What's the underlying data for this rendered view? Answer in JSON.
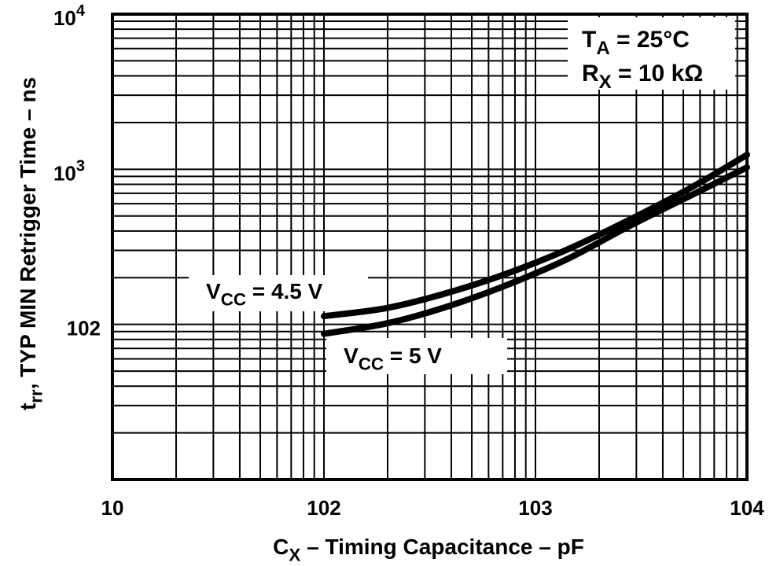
{
  "chart_data": {
    "type": "line",
    "title": "",
    "xlabel": {
      "main": "C",
      "sub": "X",
      "rest": " – Timing Capacitance – pF"
    },
    "ylabel": {
      "main": "t",
      "sub": "rr",
      "rest": ", TYP MIN Retrigger Time – ns"
    },
    "x_scale": "log",
    "y_scale": "log",
    "xlim": [
      10,
      10000
    ],
    "ylim": [
      10,
      10000
    ],
    "grid": true,
    "x_ticks": [
      {
        "value": 10,
        "label": "10",
        "sup": ""
      },
      {
        "value": 100,
        "label": "102",
        "sup": ""
      },
      {
        "value": 1000,
        "label": "103",
        "sup": ""
      },
      {
        "value": 10000,
        "label": "104",
        "sup": ""
      }
    ],
    "y_ticks": [
      {
        "value": 10000,
        "label": "10",
        "sup": "4"
      },
      {
        "value": 1000,
        "label": "10",
        "sup": "3"
      },
      {
        "value": 100,
        "label": "102",
        "sup": ""
      }
    ],
    "annotations": [
      {
        "main": "T",
        "sub": "A",
        "rest": " = 25°C"
      },
      {
        "main": "R",
        "sub": "X",
        "rest": " = 10 kΩ"
      }
    ],
    "series": [
      {
        "name": {
          "main": "V",
          "sub": "CC",
          "rest": " = 4.5 V"
        },
        "x": [
          100,
          195,
          355,
          700,
          1400,
          2770,
          5500,
          10000
        ],
        "y": [
          113,
          127,
          155,
          208,
          302,
          471,
          768,
          1240
        ]
      },
      {
        "name": {
          "main": "V",
          "sub": "CC",
          "rest": " = 5 V"
        },
        "x": [
          100,
          195,
          355,
          700,
          1400,
          2770,
          5500,
          10000
        ],
        "y": [
          87,
          101,
          126,
          175,
          262,
          429,
          684,
          1028
        ]
      }
    ],
    "colors": {
      "line": "#000000",
      "background": "#ffffff"
    }
  }
}
